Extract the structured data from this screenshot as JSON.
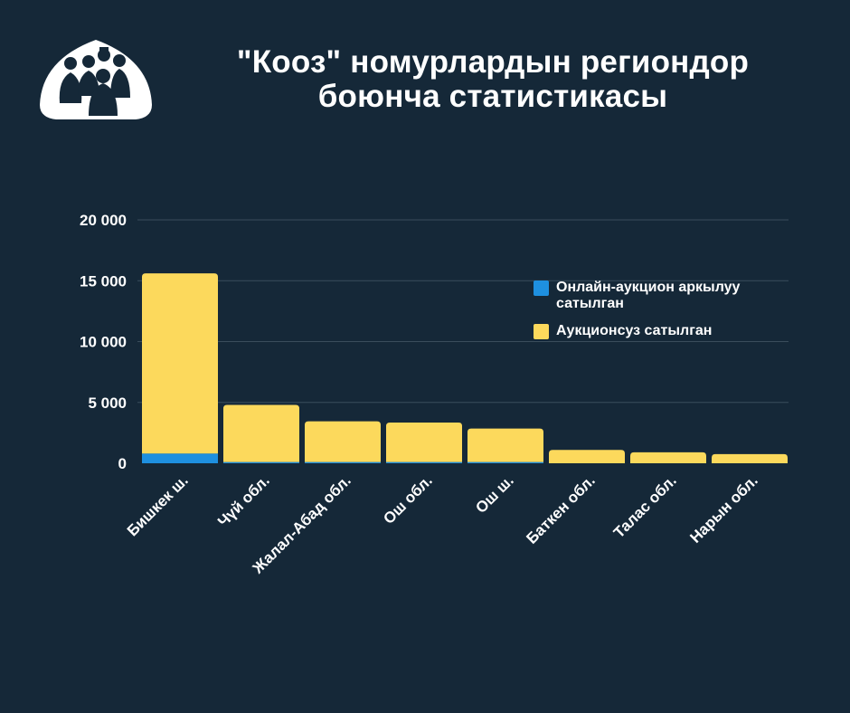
{
  "title": {
    "line1": "\"Кооз\" номурлардын региондор",
    "line2": "боюнча статистикасы"
  },
  "logo": {
    "icon": "yurt-people-icon"
  },
  "colors": {
    "background": "#152838",
    "online": "#1e90e0",
    "offline": "#fcd95c",
    "grid": "#3a4d5c"
  },
  "chart_data": {
    "type": "bar",
    "stacked": true,
    "categories": [
      "Бишкек ш.",
      "Чүй обл.",
      "Жалал-Абад обл.",
      "Ош обл.",
      "Ош ш.",
      "Баткен обл.",
      "Талас обл.",
      "Нарын обл."
    ],
    "series": [
      {
        "name": "Онлайн-аукцион аркылуу сатылган",
        "values": [
          800,
          100,
          100,
          100,
          100,
          0,
          0,
          0
        ]
      },
      {
        "name": "Аукционсуз сатылган",
        "values": [
          14800,
          4700,
          3350,
          3250,
          2750,
          1100,
          900,
          750
        ]
      }
    ],
    "yticks": [
      "20 000",
      "15 000",
      "10 000",
      "5 000",
      "0"
    ],
    "ytick_values": [
      20000,
      15000,
      10000,
      5000,
      0
    ],
    "ylim": [
      0,
      20000
    ],
    "grid": true,
    "legend_position": "top-right",
    "xlabel": "",
    "ylabel": ""
  }
}
